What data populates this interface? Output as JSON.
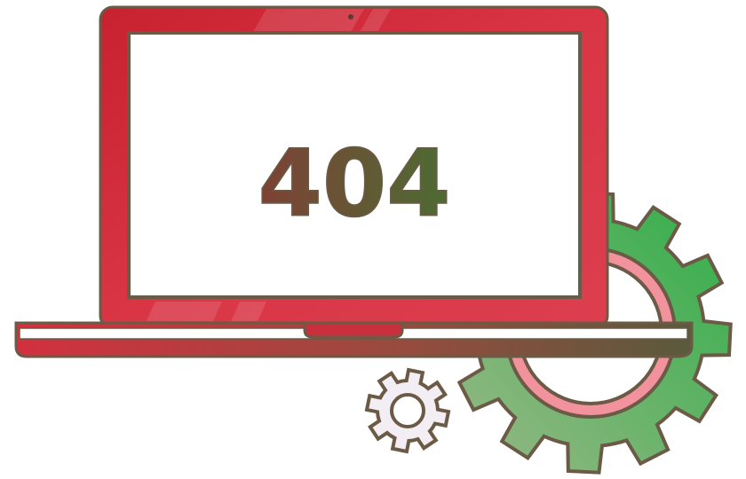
{
  "screen": {
    "error_code": "404"
  },
  "icons": {
    "laptop": "laptop-icon",
    "large_gear": "large-gear-icon",
    "small_gear": "small-gear-icon"
  },
  "colors": {
    "laptop_red": "#cf2a3a",
    "laptop_red_light": "#e4485a",
    "outline": "#6b5a45",
    "gear_green": "#3daa4a",
    "gear_green_light": "#8ab87a",
    "gear_ring_pink": "#f2929c",
    "text_brown": "#7a4638",
    "text_green": "#4e6a35"
  }
}
